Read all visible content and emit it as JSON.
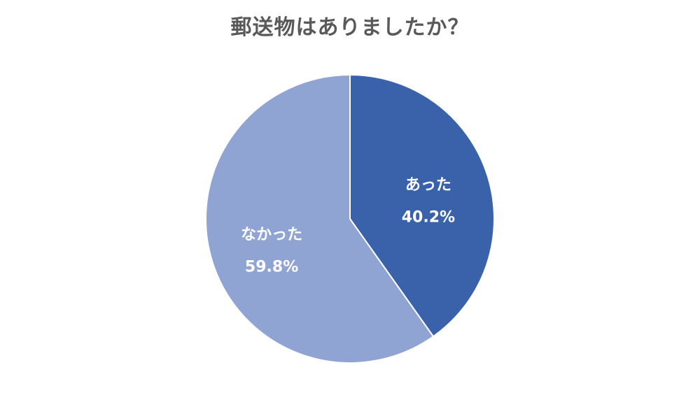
{
  "chart_data": {
    "type": "pie",
    "title": "郵送物はありましたか？",
    "start_angle": "12 o'clock, clockwise",
    "slices": [
      {
        "label": "あった",
        "value": 40.2,
        "value_label": "40.2%",
        "color": "#3a62aa"
      },
      {
        "label": "なかった",
        "value": 59.8,
        "value_label": "59.8%",
        "color": "#90a4d4"
      }
    ]
  }
}
